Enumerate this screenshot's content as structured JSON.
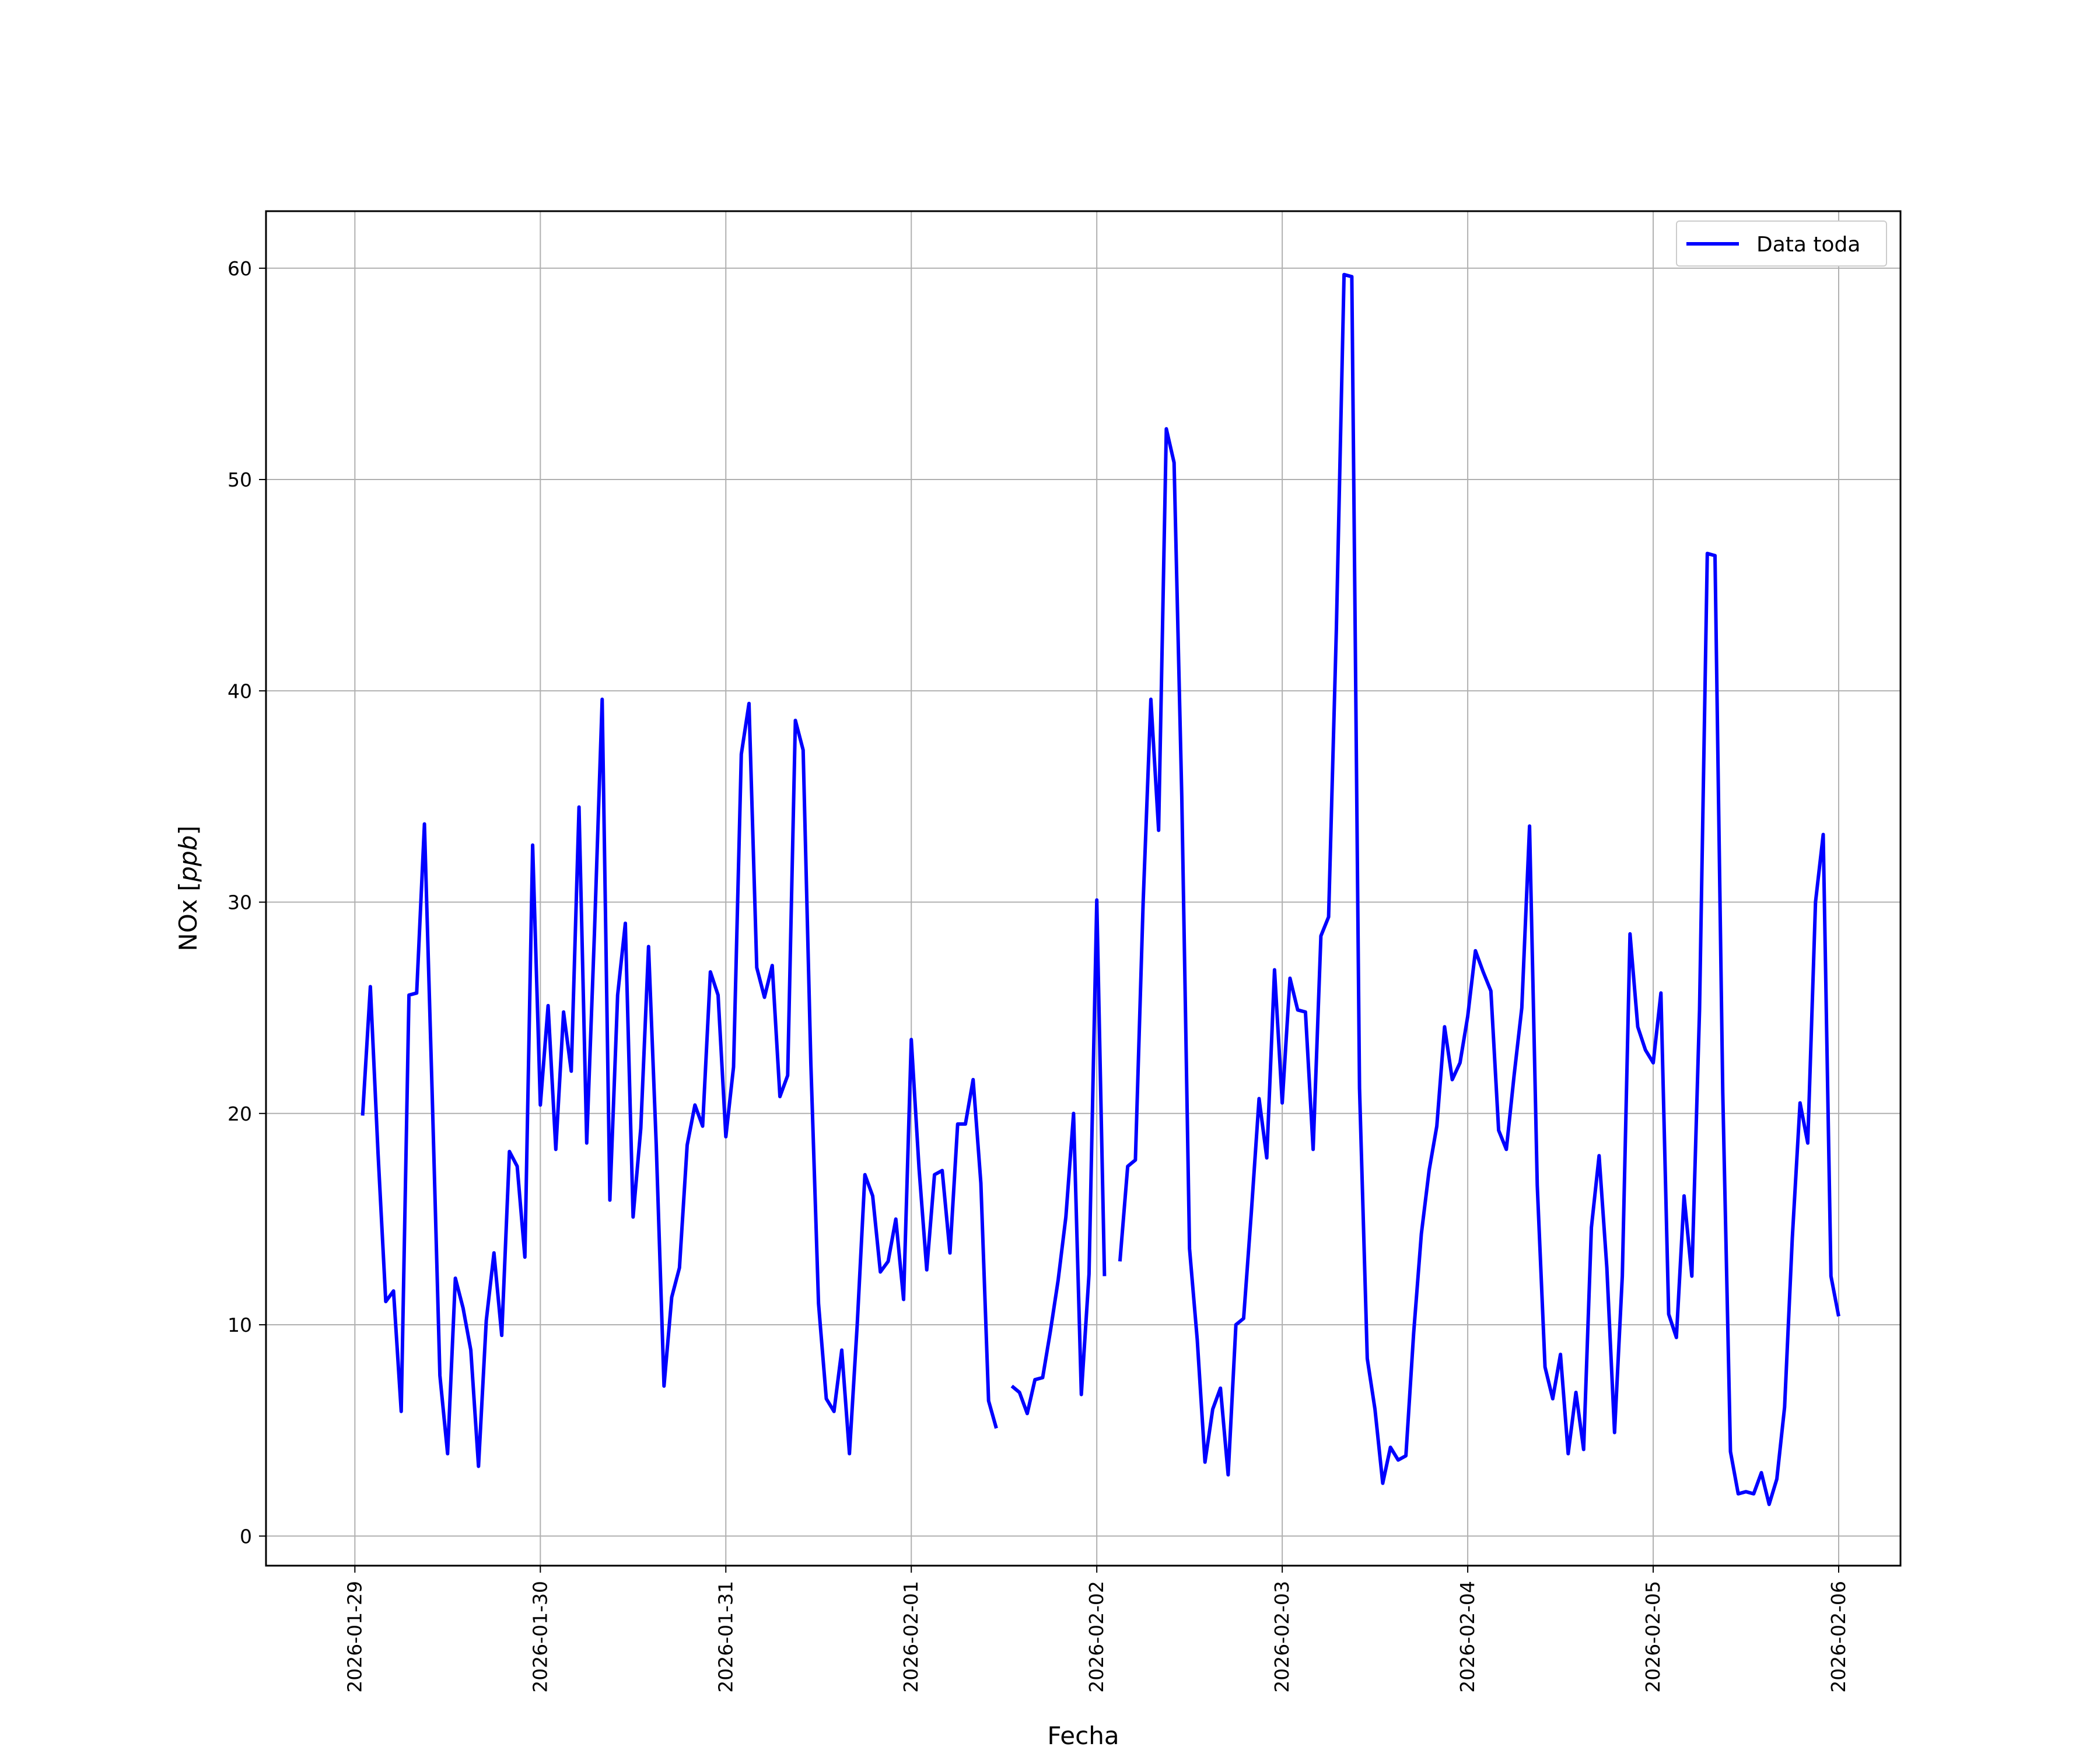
{
  "chart_data": {
    "type": "line",
    "title": "",
    "xlabel": "Fecha",
    "ylabel_text": "NOx [",
    "ylabel_unit": "ppb",
    "ylabel_close": "]",
    "x_tick_labels": [
      "2026-01-29",
      "2026-01-30",
      "2026-01-31",
      "2026-02-01",
      "2026-02-02",
      "2026-02-03",
      "2026-02-04",
      "2026-02-05",
      "2026-02-06"
    ],
    "y_tick_labels": [
      "0",
      "10",
      "20",
      "30",
      "40",
      "50",
      "60"
    ],
    "x_start_date": "2026-01-29",
    "xlim": [
      "2026-01-28 12:30",
      "2026-02-06 08:00"
    ],
    "ylim": [
      -1.4,
      62.7
    ],
    "grid": true,
    "legend": "top-right",
    "series": [
      {
        "name": "Data toda",
        "color": "#0000ff",
        "segments": [
          [
            [
              "2026-01-29 01:00",
              19.9
            ],
            [
              "2026-01-29 02:00",
              26.0
            ],
            [
              "2026-01-29 03:00",
              18.1
            ],
            [
              "2026-01-29 04:00",
              11.1
            ],
            [
              "2026-01-29 05:00",
              11.6
            ],
            [
              "2026-01-29 06:00",
              5.9
            ],
            [
              "2026-01-29 07:00",
              25.6
            ],
            [
              "2026-01-29 08:00",
              25.7
            ],
            [
              "2026-01-29 09:00",
              33.7
            ],
            [
              "2026-01-29 10:00",
              21.0
            ],
            [
              "2026-01-29 11:00",
              7.6
            ],
            [
              "2026-01-29 12:00",
              3.9
            ],
            [
              "2026-01-29 13:00",
              12.2
            ],
            [
              "2026-01-29 14:00",
              10.8
            ],
            [
              "2026-01-29 15:00",
              8.8
            ],
            [
              "2026-01-29 16:00",
              3.3
            ],
            [
              "2026-01-29 17:00",
              10.2
            ],
            [
              "2026-01-29 18:00",
              13.4
            ],
            [
              "2026-01-29 19:00",
              9.5
            ],
            [
              "2026-01-29 20:00",
              18.2
            ],
            [
              "2026-01-29 21:00",
              17.5
            ],
            [
              "2026-01-29 22:00",
              13.2
            ],
            [
              "2026-01-29 23:00",
              32.7
            ],
            [
              "2026-01-30 00:00",
              20.4
            ],
            [
              "2026-01-30 01:00",
              25.1
            ],
            [
              "2026-01-30 02:00",
              18.3
            ],
            [
              "2026-01-30 03:00",
              24.8
            ],
            [
              "2026-01-30 04:00",
              22.0
            ],
            [
              "2026-01-30 05:00",
              34.5
            ],
            [
              "2026-01-30 06:00",
              18.6
            ],
            [
              "2026-01-30 07:00",
              28.5
            ],
            [
              "2026-01-30 08:00",
              39.6
            ],
            [
              "2026-01-30 09:00",
              15.9
            ],
            [
              "2026-01-30 10:00",
              25.6
            ],
            [
              "2026-01-30 11:00",
              29.0
            ],
            [
              "2026-01-30 12:00",
              15.1
            ],
            [
              "2026-01-30 13:00",
              19.3
            ],
            [
              "2026-01-30 14:00",
              27.9
            ],
            [
              "2026-01-30 15:00",
              18.5
            ],
            [
              "2026-01-30 16:00",
              7.1
            ],
            [
              "2026-01-30 17:00",
              11.3
            ],
            [
              "2026-01-30 18:00",
              12.7
            ],
            [
              "2026-01-30 19:00",
              18.5
            ],
            [
              "2026-01-30 20:00",
              20.4
            ],
            [
              "2026-01-30 21:00",
              19.4
            ],
            [
              "2026-01-30 22:00",
              26.7
            ],
            [
              "2026-01-30 23:00",
              25.6
            ],
            [
              "2026-01-31 00:00",
              18.9
            ],
            [
              "2026-01-31 01:00",
              22.2
            ],
            [
              "2026-01-31 02:00",
              37.0
            ],
            [
              "2026-01-31 03:00",
              39.4
            ],
            [
              "2026-01-31 04:00",
              26.9
            ],
            [
              "2026-01-31 05:00",
              25.5
            ],
            [
              "2026-01-31 06:00",
              27.0
            ],
            [
              "2026-01-31 07:00",
              20.8
            ],
            [
              "2026-01-31 08:00",
              21.8
            ],
            [
              "2026-01-31 09:00",
              38.6
            ],
            [
              "2026-01-31 10:00",
              37.2
            ],
            [
              "2026-01-31 11:00",
              22.4
            ],
            [
              "2026-01-31 12:00",
              11.0
            ],
            [
              "2026-01-31 13:00",
              6.5
            ],
            [
              "2026-01-31 14:00",
              5.9
            ],
            [
              "2026-01-31 15:00",
              8.8
            ],
            [
              "2026-01-31 16:00",
              3.9
            ],
            [
              "2026-01-31 17:00",
              10.0
            ],
            [
              "2026-01-31 18:00",
              17.1
            ],
            [
              "2026-01-31 19:00",
              16.1
            ],
            [
              "2026-01-31 20:00",
              12.5
            ],
            [
              "2026-01-31 21:00",
              13.0
            ],
            [
              "2026-01-31 22:00",
              15.0
            ],
            [
              "2026-01-31 23:00",
              11.2
            ],
            [
              "2026-02-01 00:00",
              23.5
            ],
            [
              "2026-02-01 01:00",
              17.4
            ],
            [
              "2026-02-01 02:00",
              12.6
            ],
            [
              "2026-02-01 03:00",
              17.1
            ],
            [
              "2026-02-01 04:00",
              17.3
            ],
            [
              "2026-02-01 05:00",
              13.4
            ],
            [
              "2026-02-01 06:00",
              19.5
            ],
            [
              "2026-02-01 07:00",
              19.5
            ],
            [
              "2026-02-01 08:00",
              21.6
            ],
            [
              "2026-02-01 09:00",
              16.7
            ],
            [
              "2026-02-01 10:00",
              6.4
            ],
            [
              "2026-02-01 11:00",
              5.1
            ]
          ],
          [
            [
              "2026-02-01 13:00",
              7.1
            ],
            [
              "2026-02-01 14:00",
              6.8
            ],
            [
              "2026-02-01 15:00",
              5.8
            ],
            [
              "2026-02-01 16:00",
              7.4
            ],
            [
              "2026-02-01 17:00",
              7.5
            ],
            [
              "2026-02-01 18:00",
              9.7
            ],
            [
              "2026-02-01 19:00",
              12.1
            ],
            [
              "2026-02-01 20:00",
              15.1
            ],
            [
              "2026-02-01 21:00",
              20.0
            ],
            [
              "2026-02-01 22:00",
              6.7
            ],
            [
              "2026-02-01 23:00",
              12.4
            ],
            [
              "2026-02-02 00:00",
              30.1
            ],
            [
              "2026-02-02 01:00",
              12.3
            ]
          ],
          [
            [
              "2026-02-02 03:00",
              13.0
            ],
            [
              "2026-02-02 04:00",
              17.5
            ],
            [
              "2026-02-02 05:00",
              17.8
            ],
            [
              "2026-02-02 06:00",
              30.0
            ],
            [
              "2026-02-02 07:00",
              39.6
            ],
            [
              "2026-02-02 08:00",
              33.4
            ],
            [
              "2026-02-02 09:00",
              52.4
            ],
            [
              "2026-02-02 10:00",
              50.8
            ],
            [
              "2026-02-02 11:00",
              35.0
            ],
            [
              "2026-02-02 12:00",
              13.6
            ],
            [
              "2026-02-02 13:00",
              9.3
            ],
            [
              "2026-02-02 14:00",
              3.5
            ],
            [
              "2026-02-02 15:00",
              6.0
            ],
            [
              "2026-02-02 16:00",
              7.0
            ],
            [
              "2026-02-02 17:00",
              2.9
            ],
            [
              "2026-02-02 18:00",
              10.0
            ],
            [
              "2026-02-02 19:00",
              10.3
            ],
            [
              "2026-02-02 20:00",
              15.3
            ],
            [
              "2026-02-02 21:00",
              20.7
            ],
            [
              "2026-02-02 22:00",
              17.9
            ],
            [
              "2026-02-02 23:00",
              26.8
            ],
            [
              "2026-02-03 00:00",
              20.5
            ],
            [
              "2026-02-03 01:00",
              26.4
            ],
            [
              "2026-02-03 02:00",
              24.9
            ],
            [
              "2026-02-03 03:00",
              24.8
            ],
            [
              "2026-02-03 04:00",
              18.3
            ],
            [
              "2026-02-03 05:00",
              28.4
            ],
            [
              "2026-02-03 06:00",
              29.3
            ],
            [
              "2026-02-03 07:00",
              42.9
            ],
            [
              "2026-02-03 08:00",
              59.7
            ],
            [
              "2026-02-03 09:00",
              59.6
            ],
            [
              "2026-02-03 10:00",
              21.2
            ],
            [
              "2026-02-03 11:00",
              8.4
            ],
            [
              "2026-02-03 12:00",
              6.0
            ],
            [
              "2026-02-03 13:00",
              2.5
            ],
            [
              "2026-02-03 14:00",
              4.2
            ],
            [
              "2026-02-03 15:00",
              3.6
            ],
            [
              "2026-02-03 16:00",
              3.8
            ],
            [
              "2026-02-03 17:00",
              9.6
            ],
            [
              "2026-02-03 18:00",
              14.3
            ],
            [
              "2026-02-03 19:00",
              17.3
            ],
            [
              "2026-02-03 20:00",
              19.4
            ],
            [
              "2026-02-03 21:00",
              24.1
            ],
            [
              "2026-02-03 22:00",
              21.6
            ],
            [
              "2026-02-03 23:00",
              22.4
            ],
            [
              "2026-02-04 00:00",
              24.6
            ],
            [
              "2026-02-04 01:00",
              27.7
            ],
            [
              "2026-02-04 02:00",
              26.7
            ],
            [
              "2026-02-04 03:00",
              25.8
            ],
            [
              "2026-02-04 04:00",
              19.2
            ],
            [
              "2026-02-04 05:00",
              18.3
            ],
            [
              "2026-02-04 06:00",
              21.8
            ],
            [
              "2026-02-04 07:00",
              25.0
            ],
            [
              "2026-02-04 08:00",
              33.6
            ],
            [
              "2026-02-04 09:00",
              16.6
            ],
            [
              "2026-02-04 10:00",
              8.0
            ],
            [
              "2026-02-04 11:00",
              6.5
            ],
            [
              "2026-02-04 12:00",
              8.6
            ],
            [
              "2026-02-04 13:00",
              3.9
            ],
            [
              "2026-02-04 14:00",
              6.8
            ],
            [
              "2026-02-04 15:00",
              4.1
            ],
            [
              "2026-02-04 16:00",
              14.6
            ],
            [
              "2026-02-04 17:00",
              18.0
            ],
            [
              "2026-02-04 18:00",
              12.7
            ],
            [
              "2026-02-04 19:00",
              4.9
            ],
            [
              "2026-02-04 20:00",
              12.3
            ],
            [
              "2026-02-04 21:00",
              28.5
            ],
            [
              "2026-02-04 22:00",
              24.1
            ],
            [
              "2026-02-04 23:00",
              23.0
            ],
            [
              "2026-02-05 00:00",
              22.4
            ],
            [
              "2026-02-05 01:00",
              25.7
            ],
            [
              "2026-02-05 02:00",
              10.5
            ],
            [
              "2026-02-05 03:00",
              9.4
            ],
            [
              "2026-02-05 04:00",
              16.1
            ],
            [
              "2026-02-05 05:00",
              12.3
            ],
            [
              "2026-02-05 06:00",
              24.9
            ],
            [
              "2026-02-05 07:00",
              46.5
            ],
            [
              "2026-02-05 08:00",
              46.4
            ],
            [
              "2026-02-05 09:00",
              21.0
            ],
            [
              "2026-02-05 10:00",
              4.0
            ],
            [
              "2026-02-05 11:00",
              2.0
            ],
            [
              "2026-02-05 12:00",
              2.1
            ],
            [
              "2026-02-05 13:00",
              2.0
            ],
            [
              "2026-02-05 14:00",
              3.0
            ],
            [
              "2026-02-05 15:00",
              1.5
            ],
            [
              "2026-02-05 16:00",
              2.7
            ],
            [
              "2026-02-05 17:00",
              6.1
            ],
            [
              "2026-02-05 18:00",
              14.1
            ],
            [
              "2026-02-05 19:00",
              20.5
            ],
            [
              "2026-02-05 20:00",
              18.6
            ],
            [
              "2026-02-05 21:00",
              30.0
            ],
            [
              "2026-02-05 22:00",
              33.2
            ],
            [
              "2026-02-05 23:00",
              12.3
            ],
            [
              "2026-02-06 00:00",
              10.4
            ]
          ]
        ]
      }
    ]
  }
}
